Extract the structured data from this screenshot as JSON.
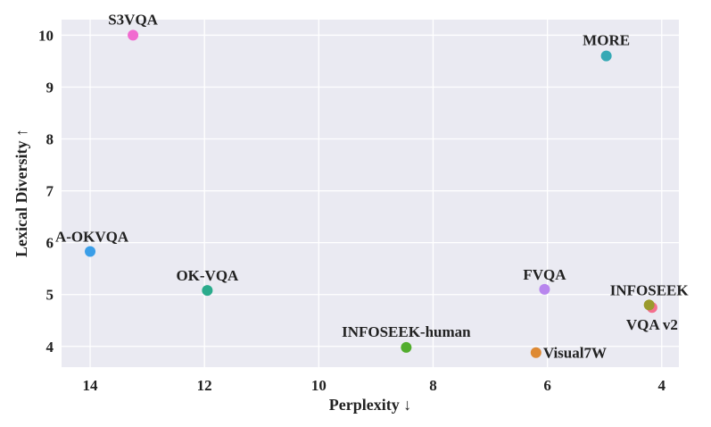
{
  "chart_data": {
    "type": "scatter",
    "xlabel": "Perplexity ↓",
    "ylabel": "Lexical Diversity ↑",
    "xlim": [
      14.5,
      3.7
    ],
    "ylim": [
      3.6,
      10.3
    ],
    "x_ticks": [
      14,
      12,
      10,
      8,
      6,
      4
    ],
    "y_ticks": [
      4,
      5,
      6,
      7,
      8,
      9,
      10
    ],
    "x_reversed": true,
    "grid": true,
    "background": "#eaeaf2",
    "points": [
      {
        "label": "S3VQA",
        "x": 13.25,
        "y": 10.0,
        "color": "#f16bd0"
      },
      {
        "label": "MORE",
        "x": 4.97,
        "y": 9.6,
        "color": "#35a9b5"
      },
      {
        "label": "A-OKVQA",
        "x": 14.0,
        "y": 5.83,
        "color": "#3a9ee8"
      },
      {
        "label": "OK-VQA",
        "x": 11.95,
        "y": 5.08,
        "color": "#2aab8c"
      },
      {
        "label": "FVQA",
        "x": 6.05,
        "y": 5.1,
        "color": "#b886ee"
      },
      {
        "label": "INFOSEEK-human",
        "x": 8.47,
        "y": 3.98,
        "color": "#52ad2e"
      },
      {
        "label": "Visual7W",
        "x": 6.2,
        "y": 3.88,
        "color": "#de8a34"
      },
      {
        "label": "VQA v2",
        "x": 4.17,
        "y": 4.75,
        "color": "#f46f8e"
      },
      {
        "label": "INFOSEEK",
        "x": 4.22,
        "y": 4.8,
        "color": "#9a9a2c"
      }
    ]
  }
}
